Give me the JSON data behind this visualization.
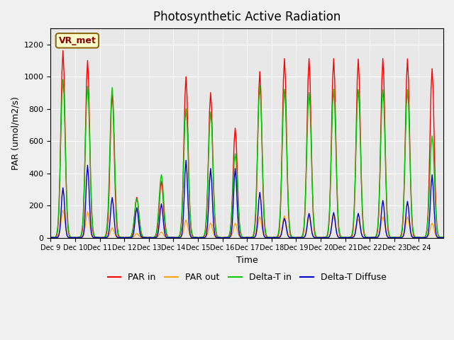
{
  "title": "Photosynthetic Active Radiation",
  "xlabel": "Time",
  "ylabel": "PAR (umol/m2/s)",
  "ylim": [
    0,
    1300
  ],
  "plot_bg_color": "#e8e8e8",
  "fig_bg_color": "#f0f0f0",
  "label_box": "VR_met",
  "tick_labels": [
    "Dec 9",
    "Dec 10",
    "Dec 11",
    "Dec 12",
    "Dec 13",
    "Dec 14",
    "Dec 15",
    "Dec 16",
    "Dec 17",
    "Dec 18",
    "Dec 19",
    "Dec 20",
    "Dec 21",
    "Dec 22",
    "Dec 23",
    "Dec 24"
  ],
  "n_days": 16,
  "colors": {
    "PAR_in": "#ff0000",
    "PAR_out": "#ffa500",
    "Delta_T_in": "#00cc00",
    "Delta_T_Diffuse": "#0000cc"
  },
  "legend_labels": [
    "PAR in",
    "PAR out",
    "Delta-T in",
    "Delta-T Diffuse"
  ],
  "par_in_peaks": [
    1160,
    1100,
    900,
    250,
    350,
    1000,
    900,
    680,
    1030,
    1110,
    1110,
    1110,
    1110,
    1110,
    1110,
    1050
  ],
  "par_out_peaks": [
    170,
    160,
    60,
    25,
    35,
    110,
    90,
    90,
    130,
    135,
    130,
    130,
    115,
    130,
    130,
    90
  ],
  "dti_peaks": [
    980,
    940,
    930,
    240,
    390,
    800,
    780,
    520,
    940,
    920,
    900,
    920,
    920,
    920,
    920,
    630
  ],
  "dtd_peaks": [
    310,
    450,
    250,
    185,
    210,
    480,
    430,
    430,
    280,
    120,
    150,
    155,
    150,
    230,
    225,
    390
  ]
}
